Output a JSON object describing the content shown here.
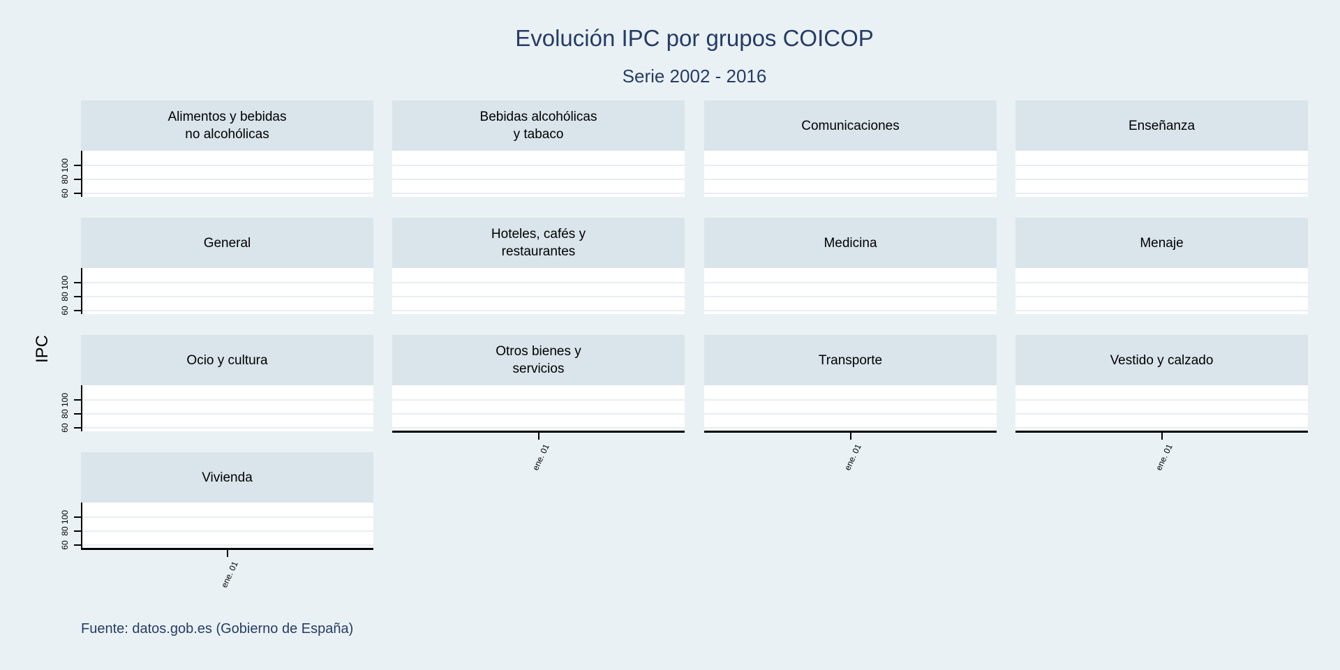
{
  "header": {
    "title": "Evolución IPC por grupos COICOP",
    "subtitle": "Serie 2002 - 2016"
  },
  "axes": {
    "y_title": "IPC",
    "y_tick_labels": [
      "100",
      "80",
      "60"
    ],
    "x_tick_label": "ene. 01"
  },
  "footer": {
    "source_note": "Fuente: datos.gob.es (Gobierno de España)"
  },
  "facets": [
    {
      "title": "Alimentos y bebidas\nno alcohólicas"
    },
    {
      "title": "Bebidas alcohólicas\ny tabaco"
    },
    {
      "title": "Comunicaciones"
    },
    {
      "title": "Enseñanza"
    },
    {
      "title": "General"
    },
    {
      "title": "Hoteles, cafés y\nrestaurantes"
    },
    {
      "title": "Medicina"
    },
    {
      "title": "Menaje"
    },
    {
      "title": "Ocio y cultura"
    },
    {
      "title": "Otros bienes y\nservicios"
    },
    {
      "title": "Transporte"
    },
    {
      "title": "Vestido y calzado"
    },
    {
      "title": "Vivienda"
    }
  ],
  "colors": {
    "background": "#eaf1f4",
    "facet_header_bg": "#d9e4eb",
    "plot_bg": "#ffffff",
    "gridline": "#e8eef2",
    "axis": "#000000",
    "heading_text": "#253c66"
  },
  "chart_data": {
    "type": "line",
    "title": "Evolución IPC por grupos COICOP",
    "subtitle": "Serie 2002 - 2016",
    "ylabel": "IPC",
    "xlabel": "",
    "facets": [
      "Alimentos y bebidas no alcohólicas",
      "Bebidas alcohólicas y tabaco",
      "Comunicaciones",
      "Enseñanza",
      "General",
      "Hoteles, cafés y restaurantes",
      "Medicina",
      "Menaje",
      "Ocio y cultura",
      "Otros bienes y servicios",
      "Transporte",
      "Vestido y calzado",
      "Vivienda"
    ],
    "layout": "small multiples, 4 columns x 4 rows (13 panels)",
    "y_ticks": [
      60,
      80,
      100
    ],
    "ylim": [
      54,
      120
    ],
    "x_ticks": [
      "ene. 01"
    ],
    "grid": true,
    "legend": "none",
    "series": [],
    "note": "All facet plot areas are empty – no data series is drawn"
  }
}
